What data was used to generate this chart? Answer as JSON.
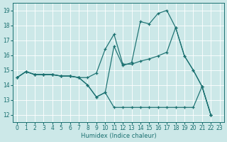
{
  "xlabel": "Humidex (Indice chaleur)",
  "bg_color": "#cce8e8",
  "grid_color": "#ffffff",
  "line_color": "#1a7070",
  "xlim": [
    -0.5,
    23.5
  ],
  "ylim": [
    11.5,
    19.5
  ],
  "xticks": [
    0,
    1,
    2,
    3,
    4,
    5,
    6,
    7,
    8,
    9,
    10,
    11,
    12,
    13,
    14,
    15,
    16,
    17,
    18,
    19,
    20,
    21,
    22,
    23
  ],
  "yticks": [
    12,
    13,
    14,
    15,
    16,
    17,
    18,
    19
  ],
  "series": [
    {
      "x": [
        0,
        1,
        2,
        3,
        4,
        5,
        6,
        7,
        8,
        9,
        10,
        11,
        12,
        13,
        14,
        15,
        16,
        17,
        18,
        19,
        20,
        21,
        22
      ],
      "y": [
        14.5,
        14.9,
        14.7,
        14.7,
        14.7,
        14.6,
        14.6,
        14.5,
        14.0,
        13.2,
        13.5,
        16.6,
        15.3,
        15.5,
        18.25,
        18.1,
        18.8,
        19.0,
        17.85,
        15.95,
        15.0,
        13.9,
        12.0
      ]
    },
    {
      "x": [
        0,
        1,
        2,
        3,
        4,
        5,
        6,
        7,
        8,
        9,
        10,
        11,
        12,
        13,
        14,
        15,
        16,
        17,
        18,
        19,
        20,
        21,
        22
      ],
      "y": [
        14.5,
        14.9,
        14.7,
        14.7,
        14.7,
        14.6,
        14.6,
        14.5,
        14.5,
        14.8,
        16.4,
        17.4,
        15.4,
        15.4,
        15.6,
        15.75,
        15.95,
        16.2,
        17.85,
        15.95,
        15.0,
        13.9,
        12.0
      ]
    },
    {
      "x": [
        0,
        1,
        2,
        3,
        4,
        5,
        6,
        7,
        8,
        9,
        10,
        11,
        12,
        13,
        14,
        15,
        16,
        17,
        18,
        19,
        20,
        21,
        22
      ],
      "y": [
        14.5,
        14.9,
        14.7,
        14.7,
        14.7,
        14.6,
        14.6,
        14.5,
        14.0,
        13.2,
        13.5,
        12.5,
        12.5,
        12.5,
        12.5,
        12.5,
        12.5,
        12.5,
        12.5,
        12.5,
        12.5,
        13.9,
        12.0
      ]
    }
  ]
}
